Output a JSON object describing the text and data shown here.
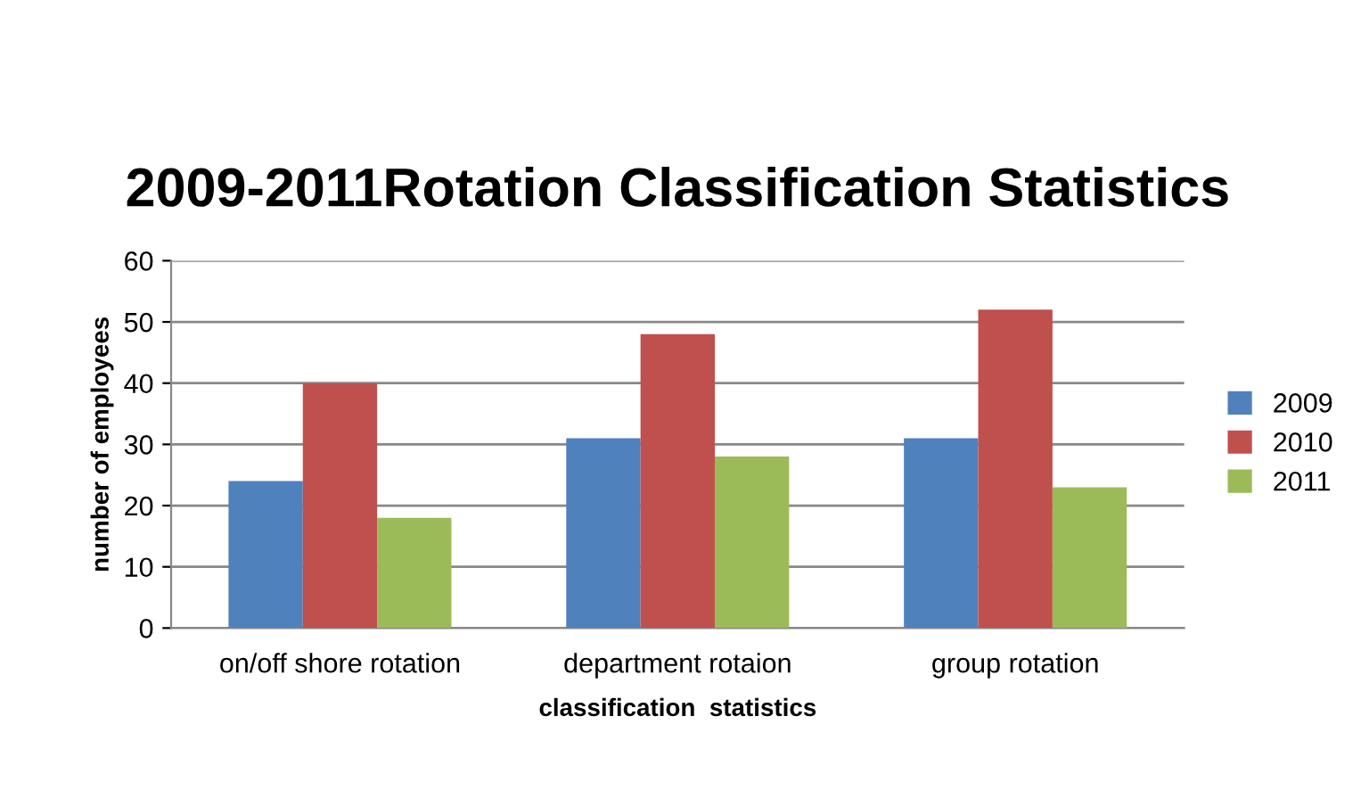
{
  "chart_data": {
    "type": "bar",
    "title": "2009-2011Rotation Classification Statistics",
    "xlabel": "classification  statistics",
    "ylabel": "number of employees",
    "categories": [
      "on/off shore rotation",
      "department rotaion",
      "group rotation"
    ],
    "series": [
      {
        "name": "2009",
        "color": "#4f81bd",
        "values": [
          24,
          31,
          31
        ]
      },
      {
        "name": "2010",
        "color": "#c0504d",
        "values": [
          40,
          48,
          52
        ]
      },
      {
        "name": "2011",
        "color": "#9bbb59",
        "values": [
          18,
          28,
          23
        ]
      }
    ],
    "ylim": [
      0,
      60
    ],
    "yticks": [
      0,
      10,
      20,
      30,
      40,
      50,
      60
    ],
    "grid": "y",
    "legend": "right"
  }
}
